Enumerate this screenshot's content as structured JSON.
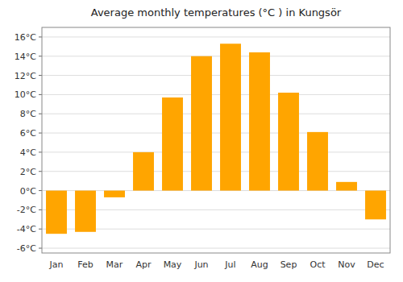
{
  "chart_data": {
    "type": "bar",
    "title": "Average monthly temperatures (°C ) in Kungsör",
    "categories": [
      "Jan",
      "Feb",
      "Mar",
      "Apr",
      "May",
      "Jun",
      "Jul",
      "Aug",
      "Sep",
      "Oct",
      "Nov",
      "Dec"
    ],
    "values": [
      -4.5,
      -4.3,
      -0.7,
      4.0,
      9.7,
      14.0,
      15.3,
      14.4,
      10.2,
      6.1,
      0.9,
      -3.0
    ],
    "color": "#FFA500",
    "ylim": [
      -6.5,
      17
    ],
    "yticks": [
      {
        "value": -6,
        "label": "-6°C"
      },
      {
        "value": -4,
        "label": "-4°C"
      },
      {
        "value": -2,
        "label": "-2°C"
      },
      {
        "value": 0,
        "label": "0°C"
      },
      {
        "value": 2,
        "label": "2°C"
      },
      {
        "value": 4,
        "label": "4°C"
      },
      {
        "value": 6,
        "label": "6°C"
      },
      {
        "value": 8,
        "label": "8°C"
      },
      {
        "value": 10,
        "label": "10°C"
      },
      {
        "value": 12,
        "label": "12°C"
      },
      {
        "value": 14,
        "label": "14°C"
      },
      {
        "value": 16,
        "label": "16°C"
      }
    ],
    "grid": true
  }
}
